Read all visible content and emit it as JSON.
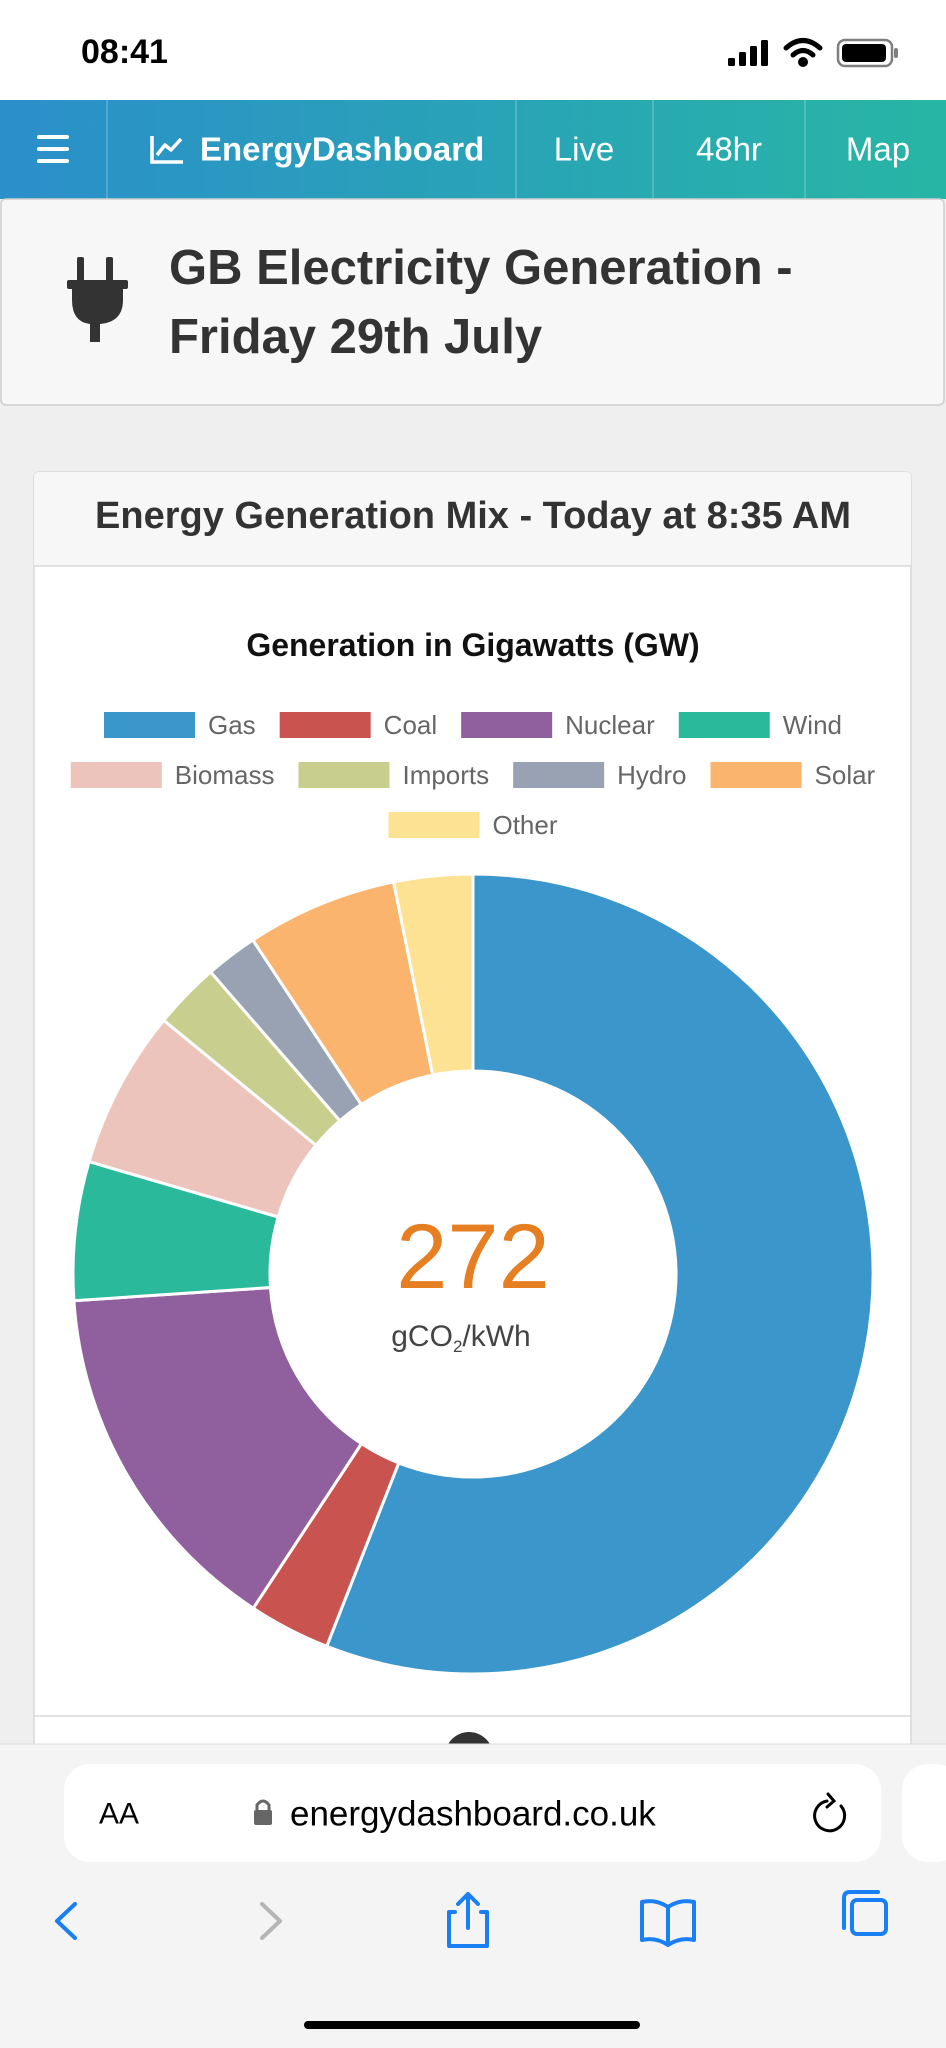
{
  "status_bar": {
    "time": "08:41"
  },
  "nav": {
    "brand": "EnergyDashboard",
    "links": [
      "Live",
      "48hr",
      "Map"
    ]
  },
  "header": {
    "title_lines": [
      "GB Electricity Generation -",
      "Friday 29th July"
    ]
  },
  "card": {
    "title": "Energy Generation Mix - Today at 8:35 AM",
    "intensity": {
      "value": 272,
      "unit_prefix": "gCO",
      "unit_sub": "2",
      "unit_suffix": "/kWh"
    }
  },
  "chart_data": {
    "type": "doughnut",
    "title": "Generation in Gigawatts (GW)",
    "categories": [
      "Gas",
      "Coal",
      "Nuclear",
      "Wind",
      "Biomass",
      "Imports",
      "Hydro",
      "Solar",
      "Other"
    ],
    "values": [
      14.6,
      0.86,
      3.83,
      1.46,
      1.67,
      0.7,
      0.55,
      1.59,
      0.83
    ],
    "colors": [
      "#3a96cb",
      "#c9534f",
      "#8f5f9e",
      "#2bb99b",
      "#ecc4bb",
      "#c8cf8e",
      "#98a2b3",
      "#fbb46e",
      "#fde293"
    ],
    "legend": "top"
  },
  "browser": {
    "text_size_button": "AA",
    "url": "energydashboard.co.uk"
  }
}
